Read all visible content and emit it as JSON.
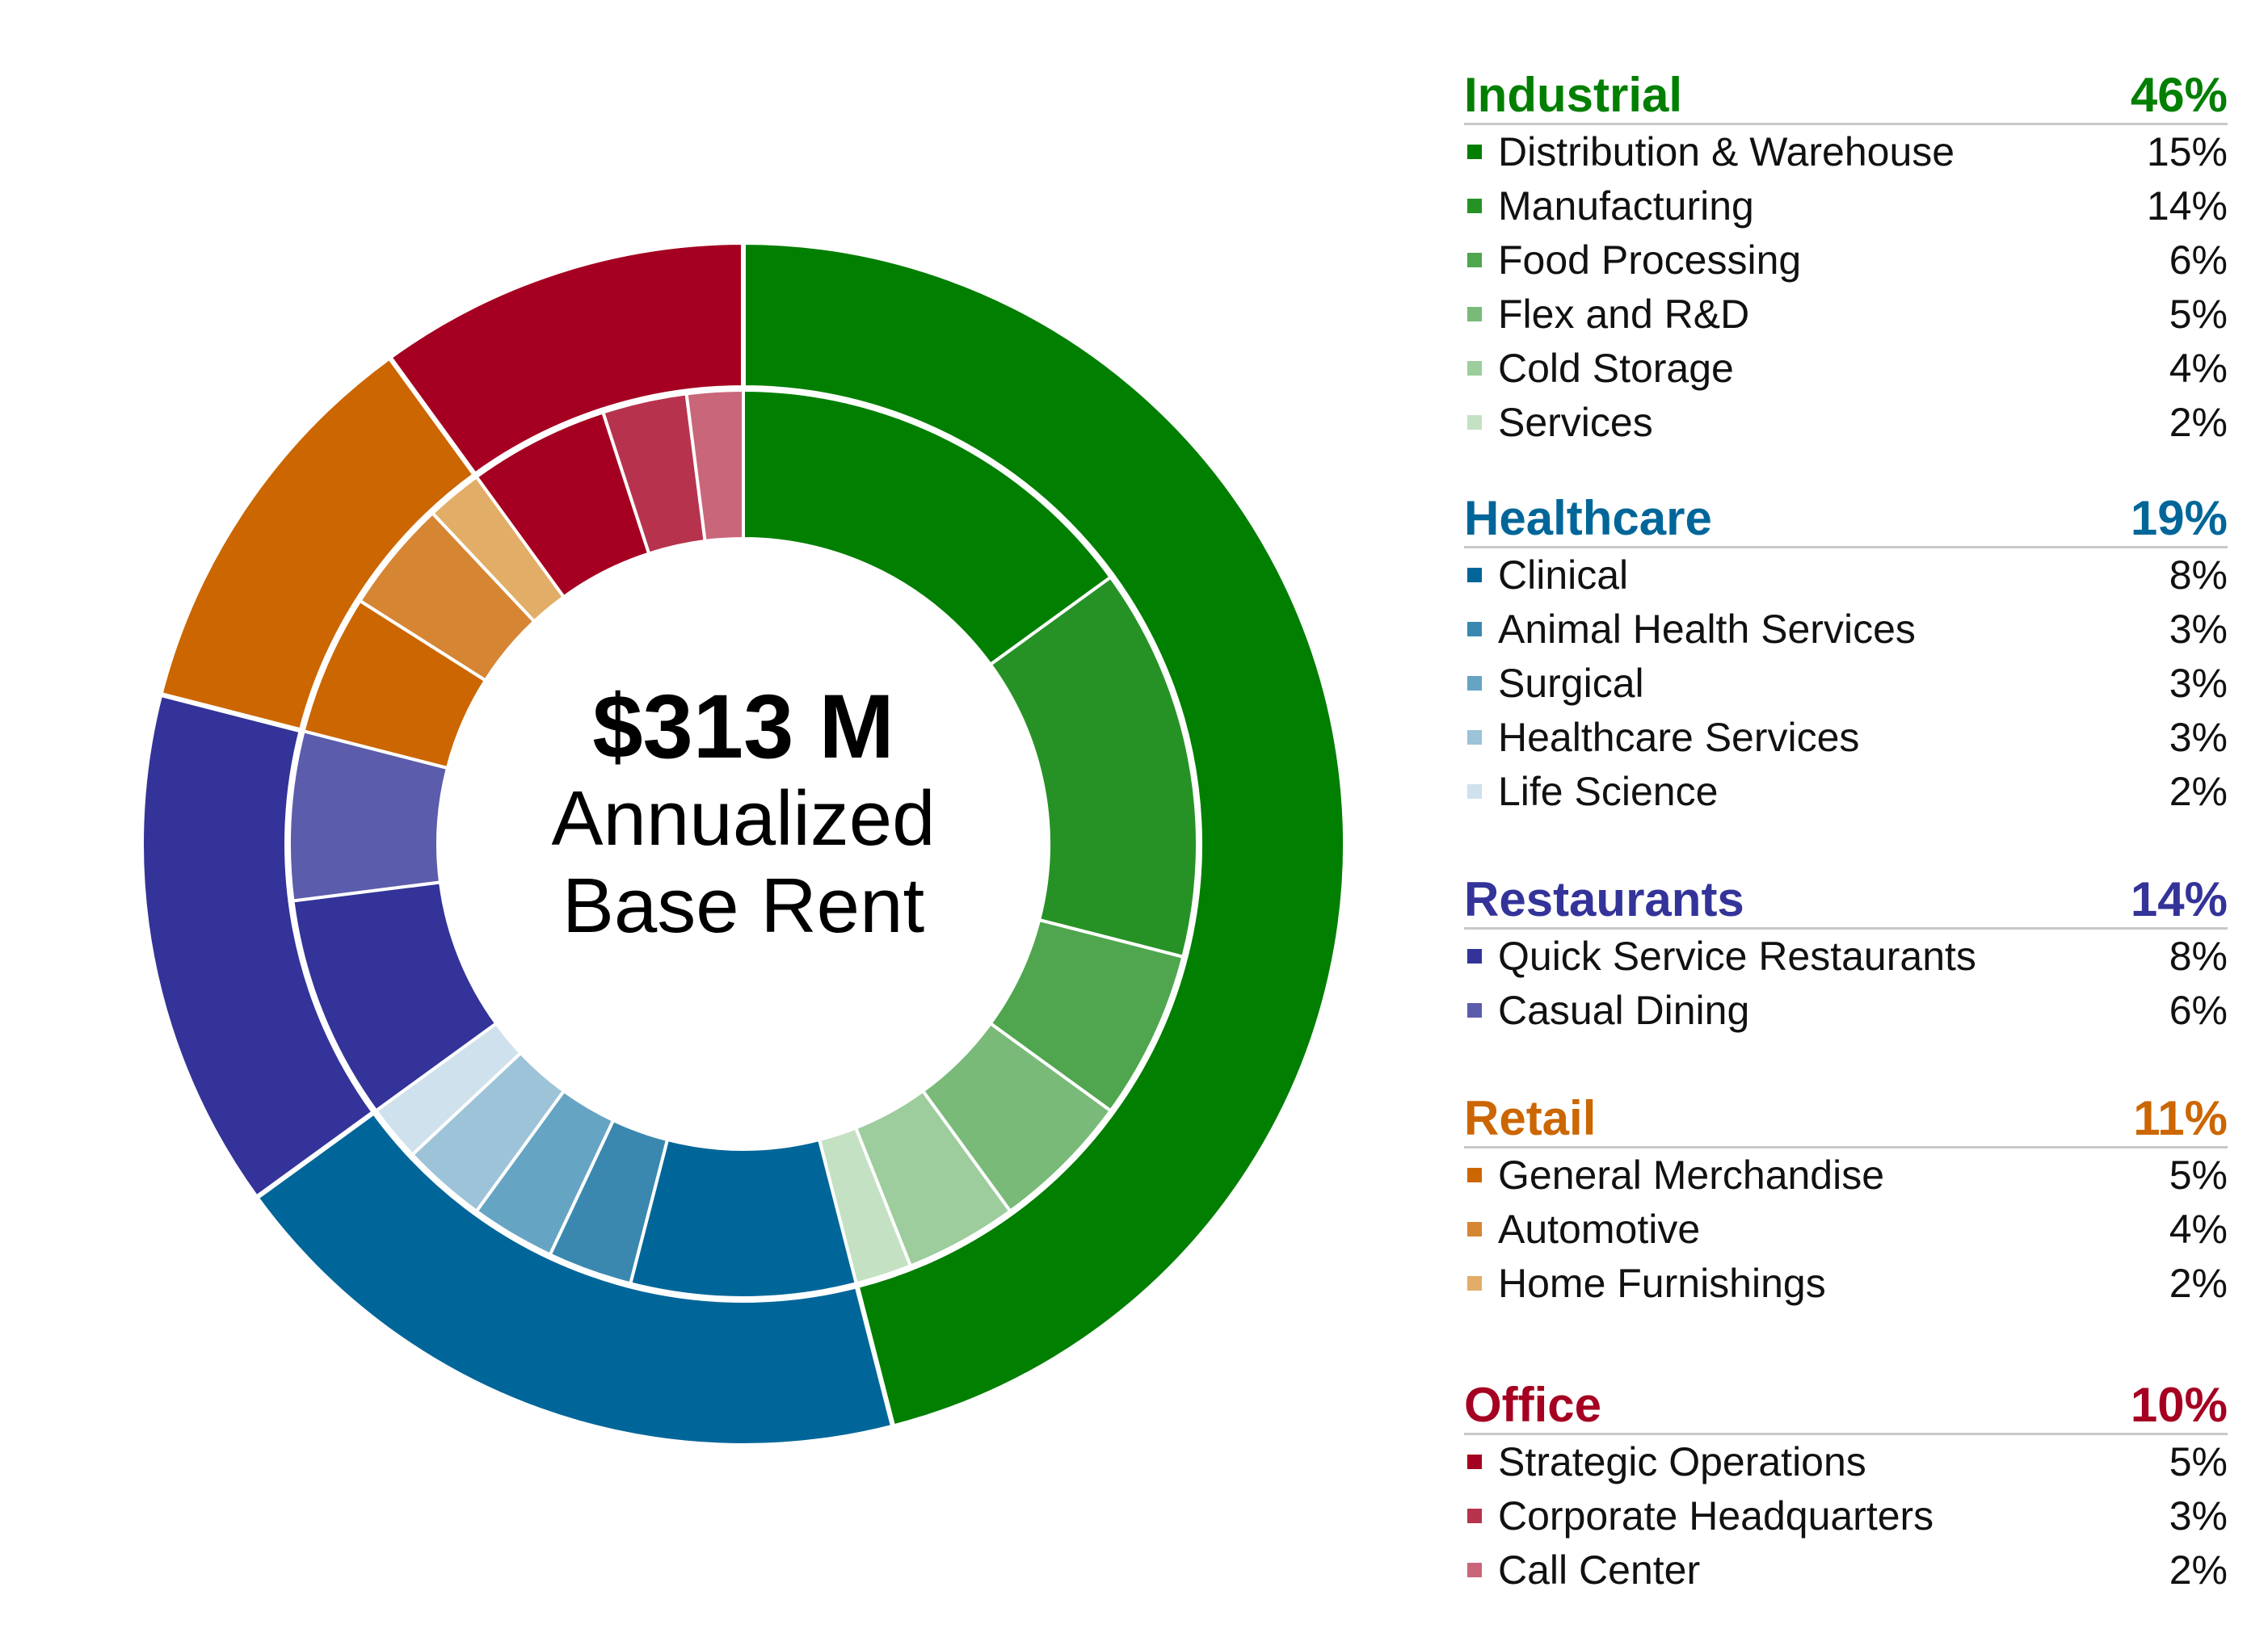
{
  "center": {
    "amount": "$313 M",
    "line1": "Annualized",
    "line2": "Base Rent"
  },
  "chart_data": {
    "type": "pie",
    "variant": "nested donut (outer ring = categories, inner ring = subcategories)",
    "categories": [
      {
        "name": "Industrial",
        "percent_label": "46%",
        "value": 46,
        "color": "#007F00",
        "subcategories": [
          {
            "name": "Distribution & Warehouse",
            "percent_label": "15%",
            "value": 15,
            "color": "#007F00"
          },
          {
            "name": "Manufacturing",
            "percent_label": "14%",
            "value": 14,
            "color": "#269226"
          },
          {
            "name": "Food Processing",
            "percent_label": "6%",
            "value": 6,
            "color": "#4FA64F"
          },
          {
            "name": "Flex and R&D",
            "percent_label": "5%",
            "value": 5,
            "color": "#79BA79"
          },
          {
            "name": "Cold Storage",
            "percent_label": "4%",
            "value": 4,
            "color": "#9DCC9D"
          },
          {
            "name": "Services",
            "percent_label": "2%",
            "value": 2,
            "color": "#C4E1C4"
          }
        ]
      },
      {
        "name": "Healthcare",
        "percent_label": "19%",
        "value": 19,
        "color": "#006699",
        "subcategories": [
          {
            "name": "Clinical",
            "percent_label": "8%",
            "value": 8,
            "color": "#006699"
          },
          {
            "name": "Animal Health Services",
            "percent_label": "3%",
            "value": 3,
            "color": "#3A88B0"
          },
          {
            "name": "Surgical",
            "percent_label": "3%",
            "value": 3,
            "color": "#66A4C3"
          },
          {
            "name": "Healthcare Services",
            "percent_label": "3%",
            "value": 3,
            "color": "#9CC3D8"
          },
          {
            "name": "Life Science",
            "percent_label": "2%",
            "value": 2,
            "color": "#CFE1EC"
          }
        ]
      },
      {
        "name": "Restaurants",
        "percent_label": "14%",
        "value": 14,
        "color": "#333399",
        "subcategories": [
          {
            "name": "Quick Service Restaurants",
            "percent_label": "8%",
            "value": 8,
            "color": "#333399"
          },
          {
            "name": "Casual Dining",
            "percent_label": "6%",
            "value": 6,
            "color": "#5C5CAD"
          }
        ]
      },
      {
        "name": "Retail",
        "percent_label": "11%",
        "value": 11,
        "color": "#CC6600",
        "subcategories": [
          {
            "name": "General Merchandise",
            "percent_label": "5%",
            "value": 5,
            "color": "#CC6600"
          },
          {
            "name": "Automotive",
            "percent_label": "4%",
            "value": 4,
            "color": "#D68533"
          },
          {
            "name": "Home Furnishings",
            "percent_label": "2%",
            "value": 2,
            "color": "#E2AD66"
          }
        ]
      },
      {
        "name": "Office",
        "percent_label": "10%",
        "value": 10,
        "color": "#A50021",
        "subcategories": [
          {
            "name": "Strategic Operations",
            "percent_label": "5%",
            "value": 5,
            "color": "#A50021"
          },
          {
            "name": "Corporate Headquarters",
            "percent_label": "3%",
            "value": 3,
            "color": "#B7334D"
          },
          {
            "name": "Call Center",
            "percent_label": "2%",
            "value": 2,
            "color": "#C9667A"
          }
        ]
      }
    ]
  }
}
